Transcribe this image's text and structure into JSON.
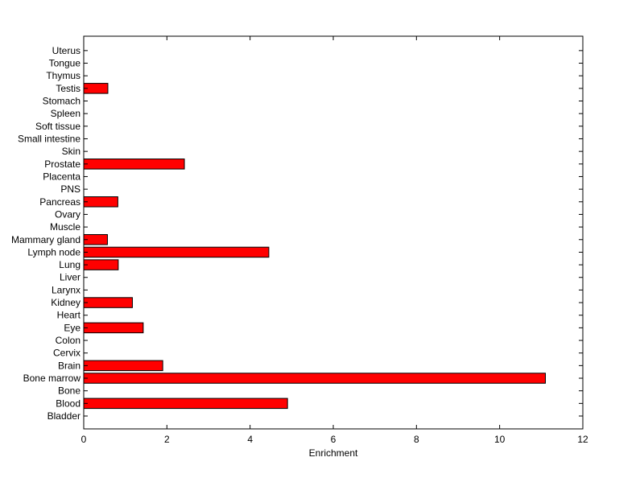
{
  "chart_data": {
    "type": "bar",
    "orientation": "horizontal",
    "title": "",
    "xlabel": "Enrichment",
    "ylabel": "",
    "xlim": [
      0,
      12
    ],
    "xticks": [
      0,
      2,
      4,
      6,
      8,
      10,
      12
    ],
    "grid": false,
    "categories": [
      "Bladder",
      "Blood",
      "Bone",
      "Bone marrow",
      "Brain",
      "Cervix",
      "Colon",
      "Eye",
      "Heart",
      "Kidney",
      "Larynx",
      "Liver",
      "Lung",
      "Lymph node",
      "Mammary gland",
      "Muscle",
      "Ovary",
      "Pancreas",
      "PNS",
      "Placenta",
      "Prostate",
      "Skin",
      "Small intestine",
      "Soft tissue",
      "Spleen",
      "Stomach",
      "Testis",
      "Thymus",
      "Tongue",
      "Uterus"
    ],
    "values": [
      0,
      4.9,
      0,
      11.1,
      1.9,
      0,
      0,
      1.43,
      0,
      1.17,
      0,
      0,
      0.83,
      4.45,
      0.57,
      0,
      0,
      0.82,
      0,
      0,
      2.42,
      0,
      0,
      0,
      0,
      0,
      0.58,
      0,
      0,
      0
    ],
    "bar_color": "#ff0000"
  }
}
